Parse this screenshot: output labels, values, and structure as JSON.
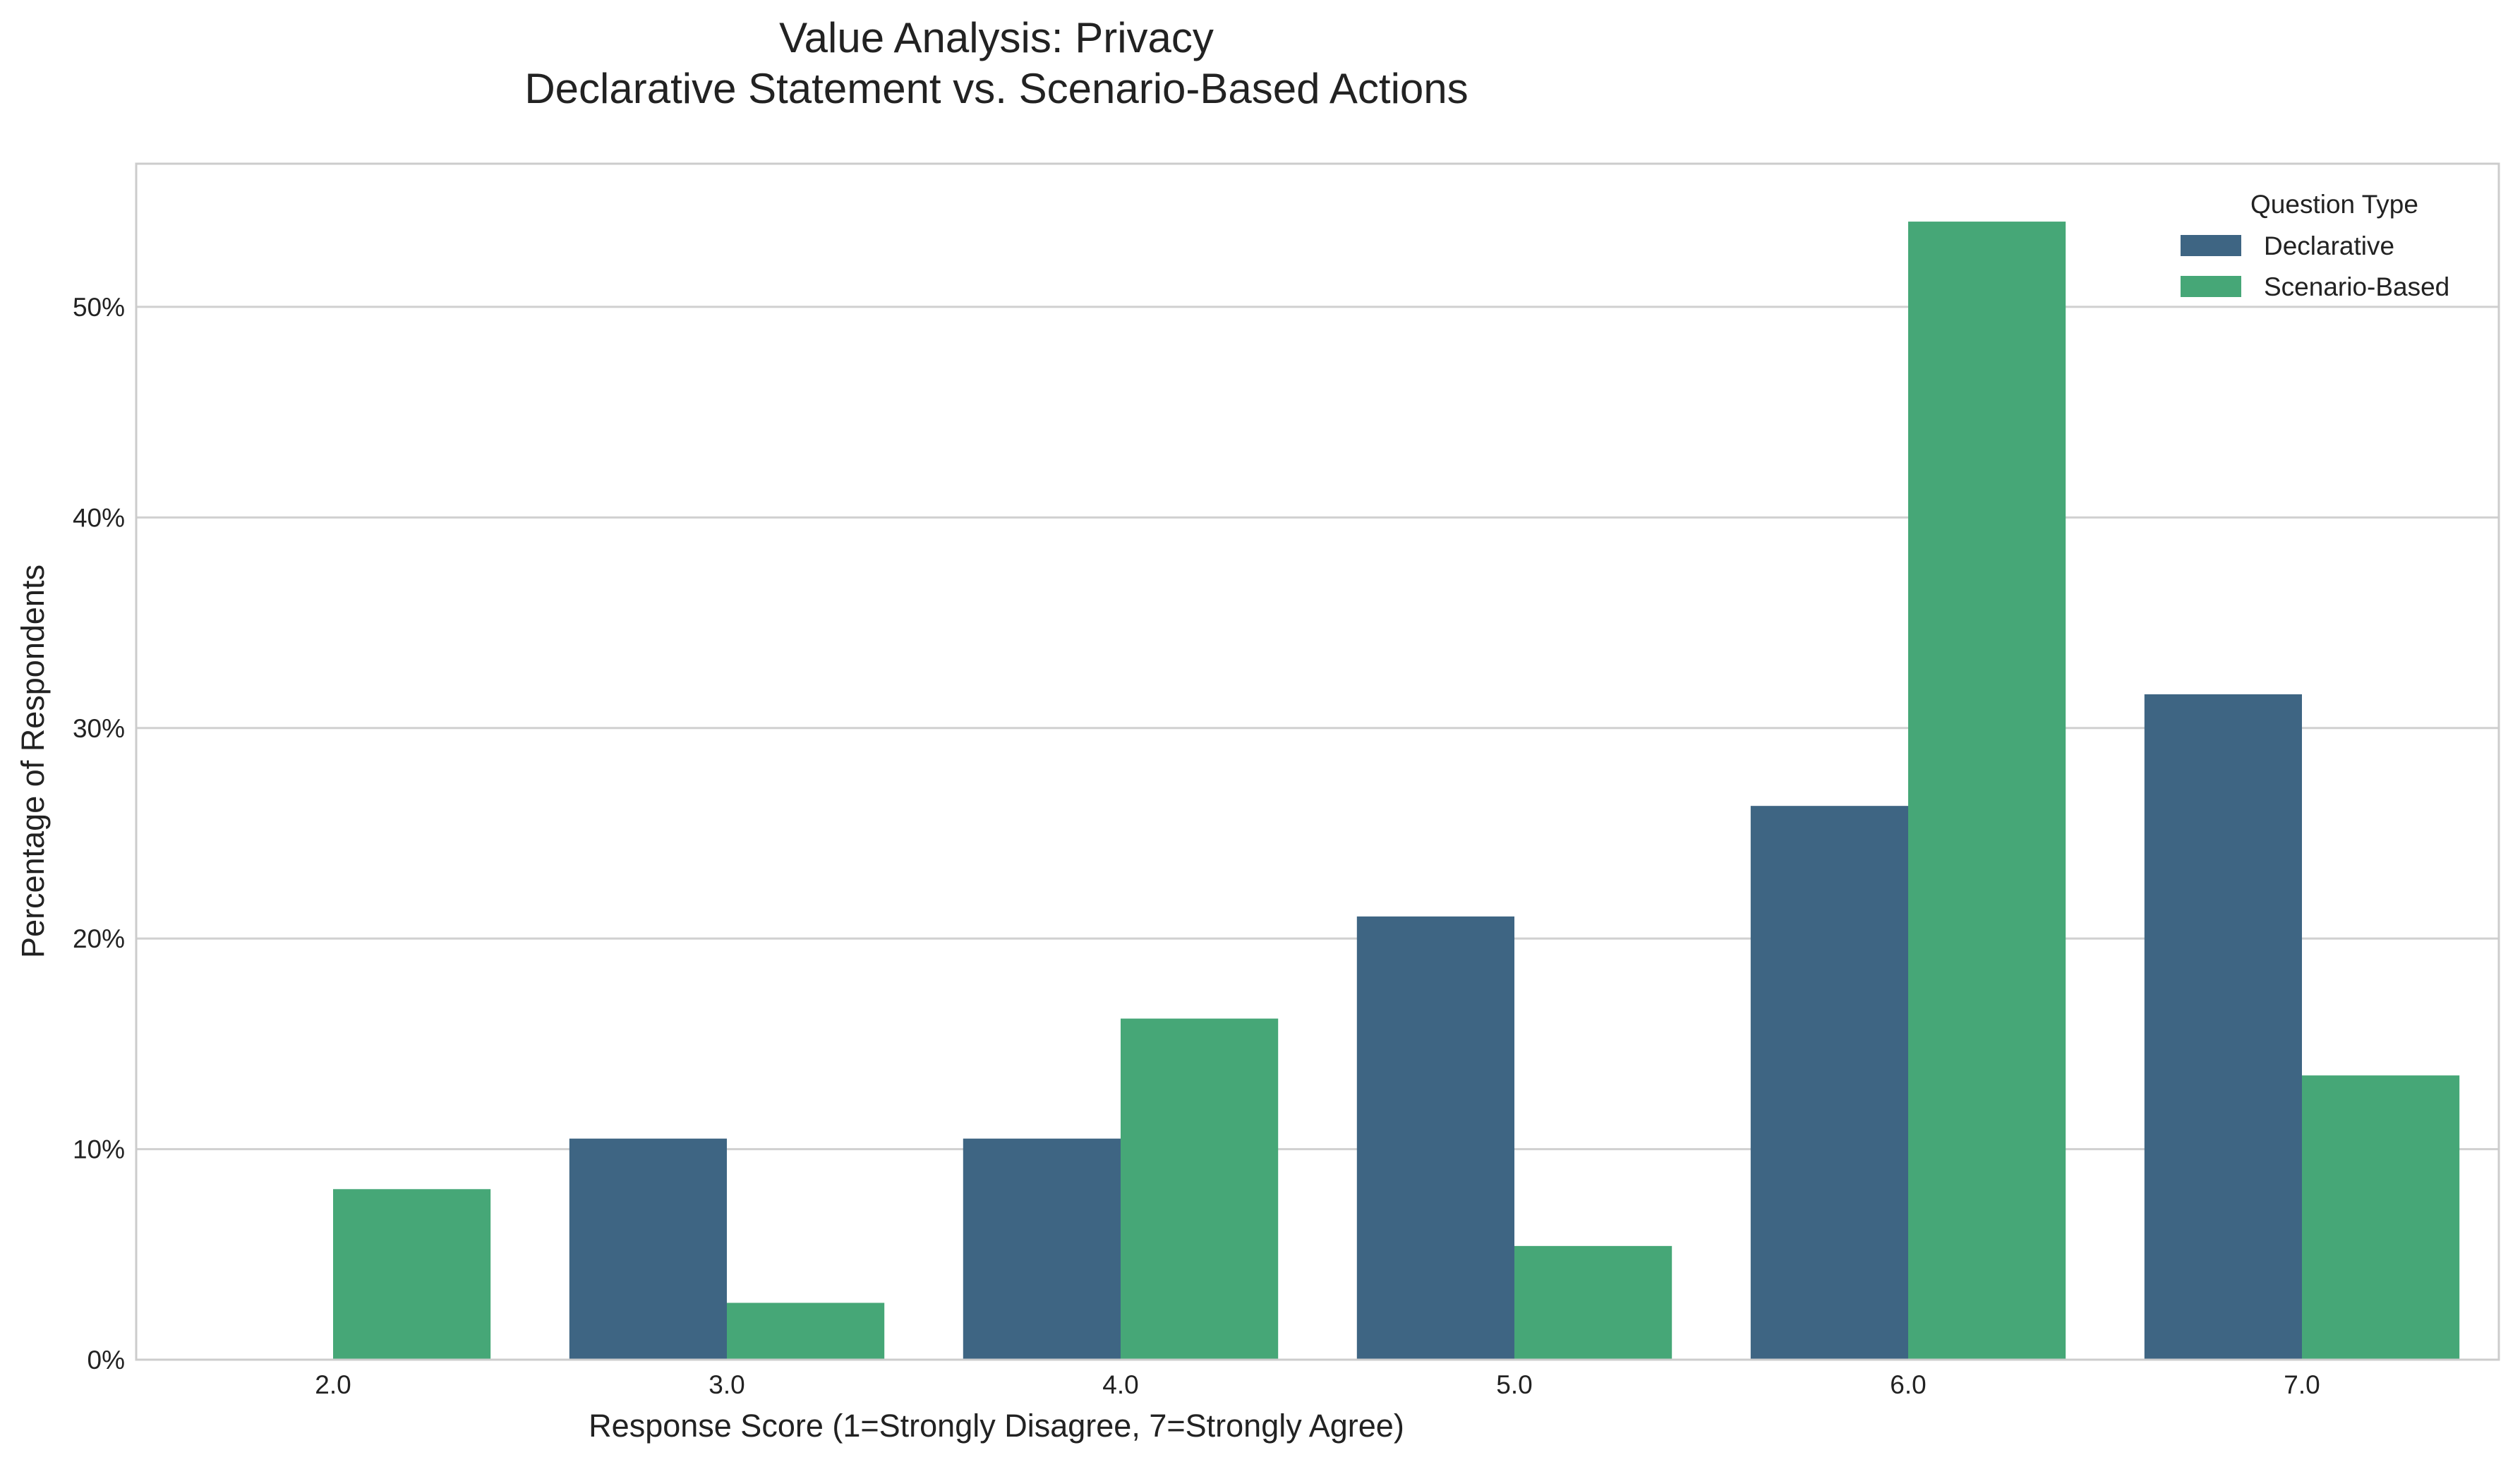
{
  "chart_data": {
    "type": "bar",
    "title_line1": "Value Analysis: Privacy",
    "title_line2": "Declarative Statement vs. Scenario-Based Actions",
    "xlabel": "Response Score (1=Strongly Disagree, 7=Strongly Agree)",
    "ylabel": "Percentage of Respondents",
    "categories": [
      "2.0",
      "3.0",
      "4.0",
      "5.0",
      "6.0",
      "7.0"
    ],
    "ylim": [
      0,
      56.8
    ],
    "yticks": [
      0,
      10,
      20,
      30,
      40,
      50
    ],
    "ytick_labels": [
      "0%",
      "10%",
      "20%",
      "30%",
      "40%",
      "50%"
    ],
    "grid": "horizontal",
    "legend": {
      "title": "Question Type",
      "placement": "top-right"
    },
    "series": [
      {
        "name": "Declarative",
        "color": "#3e6583",
        "values": [
          0,
          10.5,
          10.5,
          21.05,
          26.3,
          31.6
        ]
      },
      {
        "name": "Scenario-Based",
        "color": "#46a777",
        "values": [
          8.1,
          2.7,
          16.2,
          5.4,
          54.05,
          13.5
        ]
      }
    ]
  }
}
